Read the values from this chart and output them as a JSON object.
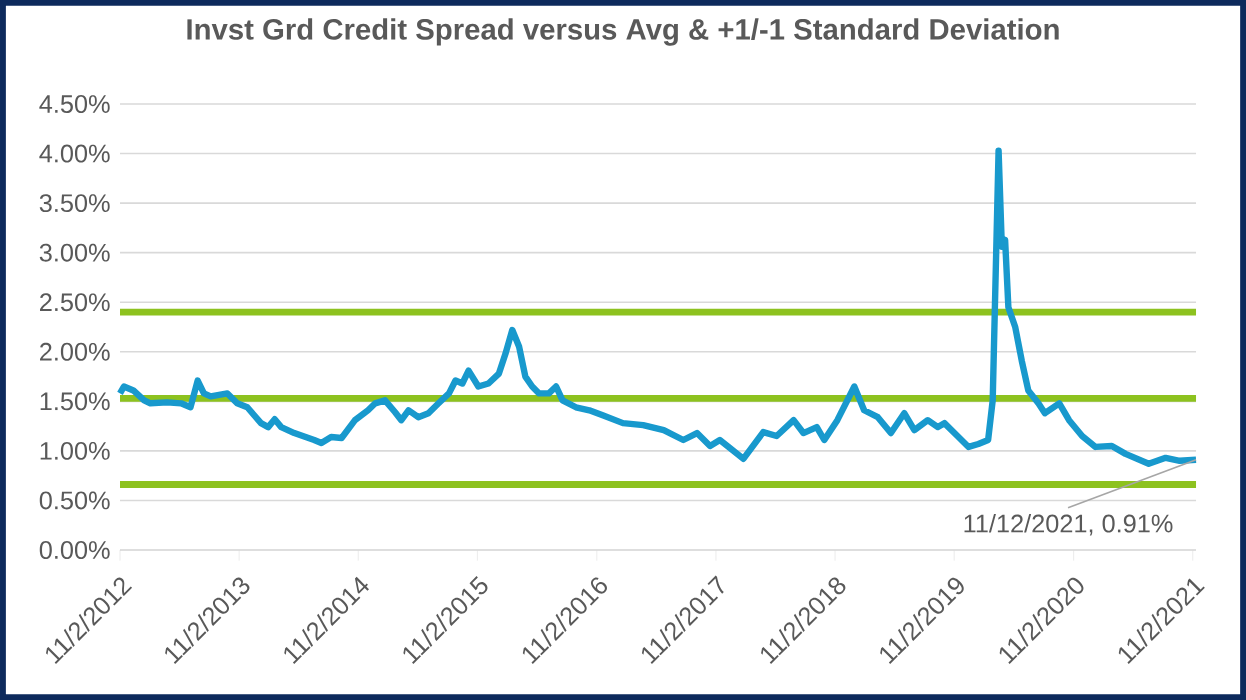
{
  "chart_data": {
    "type": "line",
    "title": "Invst Grd Credit Spread versus Avg & +1/-1 Standard Deviation",
    "x": [
      "2012-11-02",
      "2012-11-14",
      "2012-12-13",
      "2013-01-15",
      "2013-02-03",
      "2013-03-26",
      "2013-05-08",
      "2013-06-06",
      "2013-06-28",
      "2013-07-17",
      "2013-08-07",
      "2013-09-27",
      "2013-10-27",
      "2013-11-27",
      "2014-01-08",
      "2014-01-30",
      "2014-02-19",
      "2014-03-11",
      "2014-04-20",
      "2014-06-20",
      "2014-07-12",
      "2014-08-11",
      "2014-09-12",
      "2014-10-23",
      "2014-12-02",
      "2014-12-24",
      "2015-01-23",
      "2015-02-23",
      "2015-03-14",
      "2015-04-05",
      "2015-05-05",
      "2015-06-05",
      "2015-07-06",
      "2015-08-07",
      "2015-08-27",
      "2015-09-17",
      "2015-10-06",
      "2015-11-05",
      "2015-12-06",
      "2016-01-07",
      "2016-01-27",
      "2016-02-17",
      "2016-03-09",
      "2016-03-28",
      "2016-04-18",
      "2016-05-09",
      "2016-06-08",
      "2016-06-30",
      "2016-07-20",
      "2016-08-30",
      "2016-10-10",
      "2016-11-20",
      "2017-01-21",
      "2017-03-24",
      "2017-05-26",
      "2017-07-25",
      "2017-09-05",
      "2017-10-15",
      "2017-11-14",
      "2018-01-25",
      "2018-03-27",
      "2018-05-07",
      "2018-06-28",
      "2018-07-28",
      "2018-09-07",
      "2018-09-30",
      "2018-11-09",
      "2018-12-31",
      "2019-01-30",
      "2019-03-13",
      "2019-04-22",
      "2019-06-02",
      "2019-07-03",
      "2019-08-13",
      "2019-09-13",
      "2019-10-03",
      "2019-11-12",
      "2019-12-16",
      "2020-01-15",
      "2020-02-14",
      "2020-02-28",
      "2020-03-17",
      "2020-03-27",
      "2020-04-06",
      "2020-04-16",
      "2020-05-07",
      "2020-05-27",
      "2020-06-16",
      "2020-07-17",
      "2020-08-06",
      "2020-09-19",
      "2020-10-19",
      "2020-11-28",
      "2021-01-08",
      "2021-02-27",
      "2021-04-10",
      "2021-06-20",
      "2021-08-11",
      "2021-09-23",
      "2021-11-12"
    ],
    "series": [
      {
        "color": "#1899cd",
        "values": [
          1.58,
          1.65,
          1.61,
          1.51,
          1.48,
          1.49,
          1.48,
          1.44,
          1.71,
          1.58,
          1.55,
          1.58,
          1.48,
          1.44,
          1.28,
          1.24,
          1.32,
          1.24,
          1.18,
          1.11,
          1.08,
          1.14,
          1.13,
          1.31,
          1.41,
          1.48,
          1.51,
          1.39,
          1.31,
          1.41,
          1.34,
          1.38,
          1.48,
          1.58,
          1.71,
          1.68,
          1.81,
          1.65,
          1.68,
          1.78,
          1.98,
          2.22,
          2.05,
          1.75,
          1.65,
          1.58,
          1.58,
          1.65,
          1.51,
          1.44,
          1.41,
          1.36,
          1.28,
          1.26,
          1.21,
          1.11,
          1.18,
          1.05,
          1.11,
          0.92,
          1.19,
          1.15,
          1.31,
          1.18,
          1.24,
          1.11,
          1.31,
          1.65,
          1.41,
          1.34,
          1.18,
          1.38,
          1.21,
          1.31,
          1.24,
          1.28,
          1.15,
          1.04,
          1.07,
          1.11,
          1.51,
          4.03,
          3.06,
          3.13,
          2.45,
          2.25,
          1.91,
          1.61,
          1.48,
          1.38,
          1.48,
          1.31,
          1.15,
          1.04,
          1.05,
          0.97,
          0.87,
          0.93,
          0.9,
          0.91
        ]
      }
    ],
    "xlim": [
      "2012-11-02",
      "2021-11-12"
    ],
    "xticks": [
      {
        "value": "2012-11-02",
        "label": "11/2/2012"
      },
      {
        "value": "2013-11-02",
        "label": "11/2/2013"
      },
      {
        "value": "2014-11-02",
        "label": "11/2/2014"
      },
      {
        "value": "2015-11-02",
        "label": "11/2/2015"
      },
      {
        "value": "2016-11-02",
        "label": "11/2/2016"
      },
      {
        "value": "2017-11-02",
        "label": "11/2/2017"
      },
      {
        "value": "2018-11-02",
        "label": "11/2/2018"
      },
      {
        "value": "2019-11-02",
        "label": "11/2/2019"
      },
      {
        "value": "2020-11-02",
        "label": "11/2/2020"
      },
      {
        "value": "2021-11-02",
        "label": "11/2/2021"
      }
    ],
    "ylim": [
      0,
      4.5
    ],
    "yticks": [
      {
        "value": 0,
        "label": "0.00%"
      },
      {
        "value": 0.5,
        "label": "0.50%"
      },
      {
        "value": 1,
        "label": "1.00%"
      },
      {
        "value": 1.5,
        "label": "1.50%"
      },
      {
        "value": 2,
        "label": "2.00%"
      },
      {
        "value": 2.5,
        "label": "2.50%"
      },
      {
        "value": 3,
        "label": "3.00%"
      },
      {
        "value": 3.5,
        "label": "3.50%"
      },
      {
        "value": 4,
        "label": "4.00%"
      },
      {
        "value": 4.5,
        "label": "4.50%"
      }
    ],
    "ref_lines": [
      {
        "axis": "y",
        "value": 2.4,
        "color": "#8dc21f"
      },
      {
        "axis": "y",
        "value": 1.53,
        "color": "#8dc21f"
      },
      {
        "axis": "y",
        "value": 0.66,
        "color": "#8dc21f"
      }
    ],
    "annotations": [
      {
        "text": "11/12/2021, 0.91%",
        "x": "2021-11-12",
        "y": 0.91
      }
    ],
    "grid": "y"
  }
}
